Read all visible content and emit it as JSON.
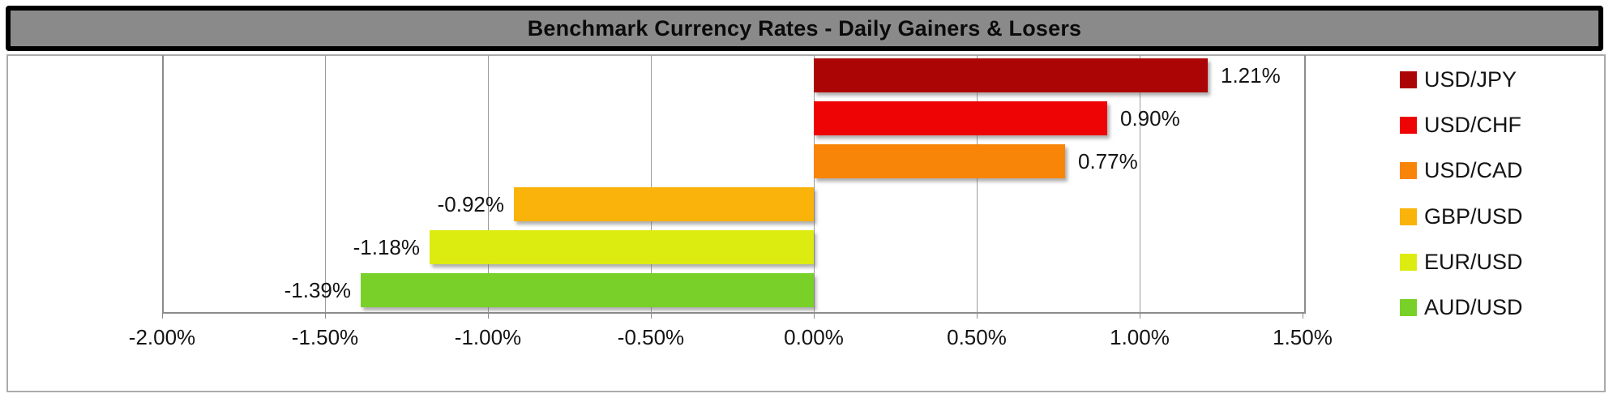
{
  "title": "Benchmark Currency Rates - Daily Gainers & Losers",
  "colors": {
    "title_bar_bg": "#8A8A8A",
    "title_bar_border": "#000000",
    "chart_box_border": "#ABABAB",
    "plot_border": "#8C8C8C",
    "gridline": "#9B9B9B",
    "text": "#141414"
  },
  "chart_data": {
    "type": "bar",
    "orientation": "horizontal",
    "title": "Benchmark Currency Rates - Daily Gainers & Losers",
    "categories": [
      "USD/JPY",
      "USD/CHF",
      "USD/CAD",
      "GBP/USD",
      "EUR/USD",
      "AUD/USD"
    ],
    "values": [
      1.21,
      0.9,
      0.77,
      -0.92,
      -1.18,
      -1.39
    ],
    "value_labels": [
      "1.21%",
      "0.90%",
      "0.77%",
      "-0.92%",
      "-1.18%",
      "-1.39%"
    ],
    "bar_colors": [
      "#AC0505",
      "#EE0404",
      "#F98508",
      "#FAB30A",
      "#DCEC11",
      "#78D029"
    ],
    "xlabel": "",
    "ylabel": "",
    "xlim": [
      -2.0,
      1.5
    ],
    "x_tick_step": 0.5,
    "x_tick_values": [
      -2.0,
      -1.5,
      -1.0,
      -0.5,
      0.0,
      0.5,
      1.0,
      1.5
    ],
    "x_tick_labels": [
      "-2.00%",
      "-1.50%",
      "-1.00%",
      "-0.50%",
      "0.00%",
      "0.50%",
      "1.00%",
      "1.50%"
    ],
    "grid": true,
    "legend_position": "right",
    "legend": [
      {
        "label": "USD/JPY",
        "color": "#AC0505"
      },
      {
        "label": "USD/CHF",
        "color": "#EE0404"
      },
      {
        "label": "USD/CAD",
        "color": "#F98508"
      },
      {
        "label": "GBP/USD",
        "color": "#FAB30A"
      },
      {
        "label": "EUR/USD",
        "color": "#DCEC11"
      },
      {
        "label": "AUD/USD",
        "color": "#78D029"
      }
    ]
  }
}
